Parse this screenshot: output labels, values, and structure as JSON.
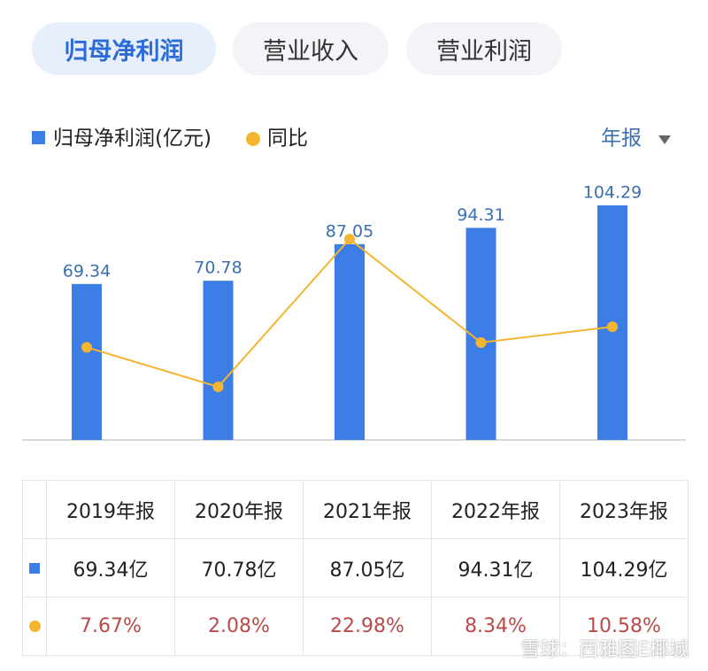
{
  "tabs": [
    "归母净利润",
    "营业收入",
    "营业利润"
  ],
  "period_selector": "年报",
  "watermark": "雪球：西雅图E椰城",
  "chart_data": {
    "type": "bar",
    "categories": [
      "2019年报",
      "2020年报",
      "2021年报",
      "2022年报",
      "2023年报"
    ],
    "series": [
      {
        "name": "归母净利润(亿元)",
        "type": "bar",
        "color": "#3d7ee6",
        "values": [
          69.34,
          70.78,
          87.05,
          94.31,
          104.29
        ],
        "value_labels": [
          "69.34亿",
          "70.78亿",
          "87.05亿",
          "94.31亿",
          "104.29亿"
        ]
      },
      {
        "name": "同比",
        "type": "line",
        "color": "#f4b530",
        "values": [
          7.67,
          2.08,
          22.98,
          8.34,
          10.58
        ],
        "value_labels": [
          "7.67%",
          "2.08%",
          "22.98%",
          "8.34%",
          "10.58%"
        ]
      }
    ]
  }
}
